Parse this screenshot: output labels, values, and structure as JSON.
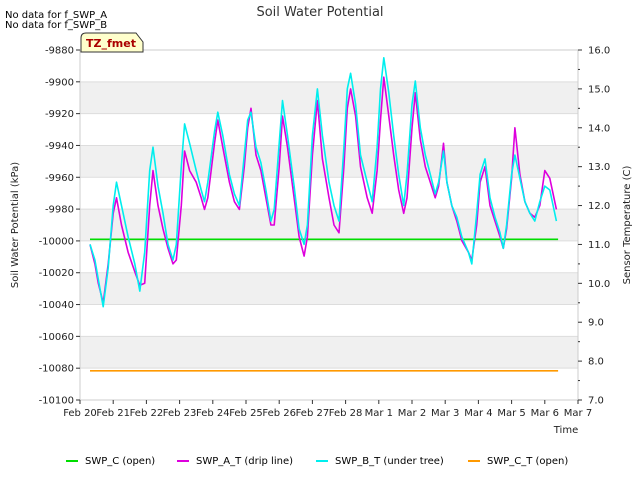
{
  "chart_data": {
    "type": "line",
    "title": "Soil Water Potential",
    "xlabel": "Time",
    "ylabel_left": "Soil Water Potential (kPa)",
    "ylabel_right": "Sensor Temperature (C)",
    "notes": [
      "No data for f_SWP_A",
      "No data for f_SWP_B"
    ],
    "tag_label": "TZ_fmet",
    "x_range_days": [
      0,
      15
    ],
    "x_ticks": [
      {
        "day": 0,
        "label": "Feb 20"
      },
      {
        "day": 1,
        "label": "Feb 21"
      },
      {
        "day": 2,
        "label": "Feb 22"
      },
      {
        "day": 3,
        "label": "Feb 23"
      },
      {
        "day": 4,
        "label": "Feb 24"
      },
      {
        "day": 5,
        "label": "Feb 25"
      },
      {
        "day": 6,
        "label": "Feb 26"
      },
      {
        "day": 7,
        "label": "Feb 27"
      },
      {
        "day": 8,
        "label": "Feb 28"
      },
      {
        "day": 9,
        "label": "Mar 1"
      },
      {
        "day": 10,
        "label": "Mar 2"
      },
      {
        "day": 11,
        "label": "Mar 3"
      },
      {
        "day": 12,
        "label": "Mar 4"
      },
      {
        "day": 13,
        "label": "Mar 5"
      },
      {
        "day": 14,
        "label": "Mar 6"
      },
      {
        "day": 15,
        "label": "Mar 7"
      }
    ],
    "y_left_range": [
      -10100,
      -9880
    ],
    "y_left_ticks": [
      -9880,
      -9900,
      -9920,
      -9940,
      -9960,
      -9980,
      -10000,
      -10020,
      -10040,
      -10060,
      -10080,
      -10100
    ],
    "y_right_range": [
      7.0,
      16.0
    ],
    "y_right_ticks": [
      7.0,
      8.0,
      9.0,
      10.0,
      11.0,
      12.0,
      13.0,
      14.0,
      15.0,
      16.0
    ],
    "series": [
      {
        "name": "SWP_C (open)",
        "axis": "left",
        "color": "#00dd00",
        "points": [
          [
            0.3,
            -9999
          ],
          [
            14.4,
            -9999
          ]
        ]
      },
      {
        "name": "SWP_A_T (drip line)",
        "axis": "right",
        "color": "#dd00dd",
        "points": [
          [
            0.3,
            11.0
          ],
          [
            0.45,
            10.5
          ],
          [
            0.55,
            10.0
          ],
          [
            0.7,
            9.5
          ],
          [
            0.85,
            10.5
          ],
          [
            1.0,
            11.8
          ],
          [
            1.1,
            12.2
          ],
          [
            1.25,
            11.5
          ],
          [
            1.45,
            10.8
          ],
          [
            1.65,
            10.3
          ],
          [
            1.8,
            9.95
          ],
          [
            1.95,
            10.0
          ],
          [
            2.1,
            12.0
          ],
          [
            2.2,
            12.9
          ],
          [
            2.35,
            12.0
          ],
          [
            2.5,
            11.4
          ],
          [
            2.65,
            10.9
          ],
          [
            2.8,
            10.5
          ],
          [
            2.9,
            10.6
          ],
          [
            3.05,
            12.0
          ],
          [
            3.15,
            13.4
          ],
          [
            3.3,
            12.9
          ],
          [
            3.5,
            12.6
          ],
          [
            3.65,
            12.2
          ],
          [
            3.75,
            11.9
          ],
          [
            3.85,
            12.2
          ],
          [
            4.05,
            13.6
          ],
          [
            4.15,
            14.2
          ],
          [
            4.3,
            13.5
          ],
          [
            4.5,
            12.6
          ],
          [
            4.65,
            12.1
          ],
          [
            4.8,
            11.9
          ],
          [
            4.95,
            13.0
          ],
          [
            5.05,
            14.0
          ],
          [
            5.15,
            14.5
          ],
          [
            5.3,
            13.3
          ],
          [
            5.45,
            12.9
          ],
          [
            5.6,
            12.2
          ],
          [
            5.75,
            11.5
          ],
          [
            5.85,
            11.5
          ],
          [
            6.0,
            13.0
          ],
          [
            6.1,
            14.3
          ],
          [
            6.25,
            13.5
          ],
          [
            6.45,
            12.2
          ],
          [
            6.6,
            11.2
          ],
          [
            6.75,
            10.7
          ],
          [
            6.85,
            11.2
          ],
          [
            7.0,
            13.3
          ],
          [
            7.15,
            14.7
          ],
          [
            7.3,
            13.2
          ],
          [
            7.5,
            12.2
          ],
          [
            7.65,
            11.5
          ],
          [
            7.8,
            11.3
          ],
          [
            7.95,
            13.0
          ],
          [
            8.05,
            14.5
          ],
          [
            8.15,
            15.0
          ],
          [
            8.3,
            14.3
          ],
          [
            8.45,
            13.0
          ],
          [
            8.65,
            12.2
          ],
          [
            8.8,
            11.8
          ],
          [
            8.95,
            12.9
          ],
          [
            9.05,
            14.2
          ],
          [
            9.15,
            15.3
          ],
          [
            9.3,
            14.3
          ],
          [
            9.45,
            13.3
          ],
          [
            9.6,
            12.4
          ],
          [
            9.75,
            11.8
          ],
          [
            9.85,
            12.2
          ],
          [
            10.0,
            14.0
          ],
          [
            10.1,
            14.9
          ],
          [
            10.25,
            13.7
          ],
          [
            10.4,
            13.0
          ],
          [
            10.55,
            12.6
          ],
          [
            10.7,
            12.2
          ],
          [
            10.8,
            12.5
          ],
          [
            10.95,
            13.6
          ],
          [
            11.05,
            12.6
          ],
          [
            11.2,
            12.0
          ],
          [
            11.35,
            11.6
          ],
          [
            11.5,
            11.1
          ],
          [
            11.7,
            10.8
          ],
          [
            11.8,
            10.6
          ],
          [
            11.95,
            11.5
          ],
          [
            12.05,
            12.6
          ],
          [
            12.2,
            13.0
          ],
          [
            12.35,
            12.0
          ],
          [
            12.5,
            11.6
          ],
          [
            12.65,
            11.2
          ],
          [
            12.75,
            10.9
          ],
          [
            12.85,
            11.4
          ],
          [
            13.0,
            12.7
          ],
          [
            13.1,
            14.0
          ],
          [
            13.25,
            12.8
          ],
          [
            13.4,
            12.1
          ],
          [
            13.55,
            11.8
          ],
          [
            13.7,
            11.7
          ],
          [
            13.85,
            12.0
          ],
          [
            14.0,
            12.9
          ],
          [
            14.15,
            12.7
          ],
          [
            14.35,
            11.9
          ]
        ]
      },
      {
        "name": "SWP_B_T (under tree)",
        "axis": "right",
        "color": "#00eeee",
        "points": [
          [
            0.3,
            11.0
          ],
          [
            0.45,
            10.6
          ],
          [
            0.55,
            10.1
          ],
          [
            0.7,
            9.4
          ],
          [
            0.85,
            10.4
          ],
          [
            1.0,
            12.0
          ],
          [
            1.1,
            12.6
          ],
          [
            1.25,
            12.0
          ],
          [
            1.45,
            11.2
          ],
          [
            1.65,
            10.5
          ],
          [
            1.8,
            9.8
          ],
          [
            1.95,
            10.8
          ],
          [
            2.1,
            12.9
          ],
          [
            2.2,
            13.5
          ],
          [
            2.35,
            12.5
          ],
          [
            2.5,
            11.8
          ],
          [
            2.65,
            11.0
          ],
          [
            2.8,
            10.6
          ],
          [
            2.9,
            11.0
          ],
          [
            3.05,
            13.0
          ],
          [
            3.15,
            14.1
          ],
          [
            3.3,
            13.6
          ],
          [
            3.5,
            12.9
          ],
          [
            3.65,
            12.4
          ],
          [
            3.75,
            12.1
          ],
          [
            3.85,
            12.6
          ],
          [
            4.05,
            13.9
          ],
          [
            4.15,
            14.4
          ],
          [
            4.3,
            13.8
          ],
          [
            4.5,
            12.8
          ],
          [
            4.65,
            12.3
          ],
          [
            4.8,
            12.0
          ],
          [
            4.95,
            13.3
          ],
          [
            5.05,
            14.2
          ],
          [
            5.15,
            14.4
          ],
          [
            5.3,
            13.5
          ],
          [
            5.45,
            13.1
          ],
          [
            5.6,
            12.4
          ],
          [
            5.75,
            11.6
          ],
          [
            5.85,
            11.9
          ],
          [
            6.0,
            13.6
          ],
          [
            6.1,
            14.7
          ],
          [
            6.25,
            13.8
          ],
          [
            6.45,
            12.5
          ],
          [
            6.6,
            11.4
          ],
          [
            6.75,
            11.0
          ],
          [
            6.85,
            11.5
          ],
          [
            7.0,
            13.8
          ],
          [
            7.15,
            15.0
          ],
          [
            7.3,
            13.8
          ],
          [
            7.5,
            12.6
          ],
          [
            7.65,
            12.0
          ],
          [
            7.8,
            11.6
          ],
          [
            7.95,
            13.5
          ],
          [
            8.05,
            15.0
          ],
          [
            8.15,
            15.4
          ],
          [
            8.3,
            14.6
          ],
          [
            8.45,
            13.3
          ],
          [
            8.65,
            12.6
          ],
          [
            8.8,
            12.1
          ],
          [
            8.95,
            13.5
          ],
          [
            9.05,
            15.0
          ],
          [
            9.15,
            15.8
          ],
          [
            9.3,
            14.9
          ],
          [
            9.45,
            13.8
          ],
          [
            9.6,
            12.8
          ],
          [
            9.75,
            12.0
          ],
          [
            9.85,
            12.8
          ],
          [
            10.0,
            14.6
          ],
          [
            10.1,
            15.2
          ],
          [
            10.25,
            14.0
          ],
          [
            10.4,
            13.3
          ],
          [
            10.55,
            12.8
          ],
          [
            10.7,
            12.3
          ],
          [
            10.8,
            12.6
          ],
          [
            10.95,
            13.4
          ],
          [
            11.05,
            12.6
          ],
          [
            11.2,
            12.0
          ],
          [
            11.35,
            11.7
          ],
          [
            11.5,
            11.2
          ],
          [
            11.7,
            10.8
          ],
          [
            11.8,
            10.5
          ],
          [
            11.95,
            11.8
          ],
          [
            12.05,
            12.8
          ],
          [
            12.2,
            13.2
          ],
          [
            12.35,
            12.2
          ],
          [
            12.5,
            11.7
          ],
          [
            12.65,
            11.3
          ],
          [
            12.75,
            10.9
          ],
          [
            12.85,
            11.5
          ],
          [
            13.0,
            12.8
          ],
          [
            13.1,
            13.3
          ],
          [
            13.25,
            12.7
          ],
          [
            13.4,
            12.1
          ],
          [
            13.55,
            11.8
          ],
          [
            13.7,
            11.6
          ],
          [
            13.85,
            12.1
          ],
          [
            14.0,
            12.5
          ],
          [
            14.15,
            12.4
          ],
          [
            14.35,
            11.6
          ]
        ]
      },
      {
        "name": "SWP_C_T (open)",
        "axis": "right",
        "color": "#ff9900",
        "points": [
          [
            0.3,
            7.75
          ],
          [
            14.4,
            7.75
          ]
        ]
      }
    ]
  }
}
